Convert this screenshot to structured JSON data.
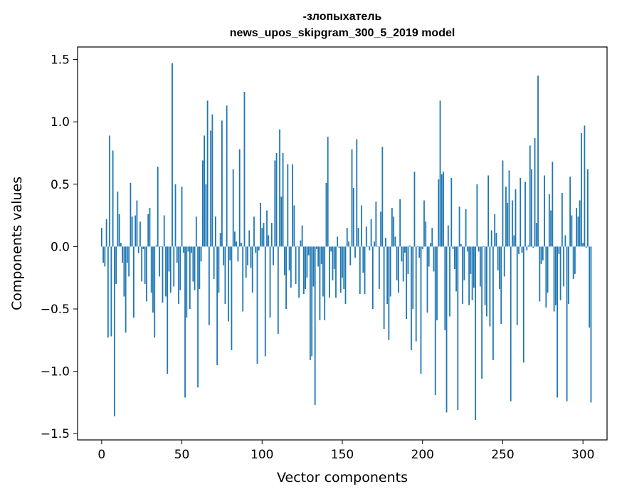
{
  "chart_data": {
    "type": "bar",
    "title_line1": "-злопыхатель",
    "title_line2": "news_upos_skipgram_300_5_2019 model",
    "xlabel": "Vector components",
    "ylabel": "Components values",
    "xlim": [
      -15,
      315
    ],
    "ylim": [
      -1.55,
      1.6
    ],
    "xticks": [
      0,
      50,
      100,
      150,
      200,
      250,
      300
    ],
    "xtick_labels": [
      "0",
      "50",
      "100",
      "150",
      "200",
      "250",
      "300"
    ],
    "yticks": [
      -1.5,
      -1.0,
      -0.5,
      0.0,
      0.5,
      1.0,
      1.5
    ],
    "ytick_labels": [
      "−1.5",
      "−1.0",
      "−0.5",
      "0.0",
      "0.5",
      "1.0",
      "1.5"
    ],
    "grid": false,
    "bar_color": "#1f77b4",
    "x_start": 0,
    "values": [
      0.15,
      -0.13,
      -0.16,
      0.22,
      -0.73,
      0.89,
      -0.72,
      0.77,
      -1.36,
      -0.3,
      0.44,
      0.26,
      0.03,
      -0.13,
      -0.4,
      -0.69,
      -0.13,
      -0.24,
      0.51,
      0.24,
      -0.57,
      0.25,
      0.37,
      -0.05,
      0.2,
      -0.28,
      -0.02,
      -0.3,
      -0.44,
      0.26,
      0.31,
      -0.37,
      -0.53,
      -0.73,
      0.01,
      0.64,
      -0.24,
      0.0,
      -0.45,
      0.25,
      -0.4,
      -1.02,
      -0.2,
      -0.37,
      1.47,
      -0.32,
      0.5,
      -0.13,
      -0.46,
      -0.35,
      0.48,
      -0.05,
      -1.21,
      -0.57,
      -0.04,
      -0.5,
      -0.05,
      -0.28,
      -0.35,
      0.24,
      -1.13,
      -0.34,
      -0.12,
      0.69,
      0.89,
      0.5,
      1.17,
      -0.63,
      0.93,
      1.06,
      -0.26,
      0.24,
      -0.95,
      -0.37,
      0.11,
      1.01,
      -0.15,
      -0.46,
      1.13,
      -0.6,
      -0.11,
      -0.83,
      0.62,
      0.12,
      0.04,
      -0.12,
      0.78,
      0.03,
      -0.52,
      1.24,
      -0.25,
      -0.15,
      0.13,
      -0.17,
      -0.37,
      0.24,
      -0.05,
      -0.94,
      -0.03,
      0.35,
      0.15,
      0.19,
      -0.88,
      0.29,
      0.09,
      -0.57,
      0.19,
      -0.15,
      0.69,
      0.75,
      -0.7,
      0.94,
      0.4,
      0.75,
      -0.23,
      -0.5,
      0.66,
      -0.19,
      -0.33,
      0.66,
      0.33,
      -0.3,
      0.0,
      -0.41,
      0.05,
      0.17,
      -0.38,
      -0.34,
      -0.25,
      -0.07,
      -0.91,
      -0.88,
      -0.32,
      -1.27,
      -0.02,
      -0.16,
      -0.59,
      -0.14,
      -0.4,
      -0.59,
      0.51,
      0.88,
      -0.41,
      -0.04,
      -0.27,
      -0.18,
      -0.41,
      0.08,
      -0.01,
      -0.37,
      -0.25,
      -0.34,
      -0.46,
      0.15,
      0.04,
      -0.15,
      0.78,
      0.47,
      -0.09,
      0.86,
      0.15,
      -0.38,
      0.33,
      -0.21,
      -0.38,
      0.16,
      0.0,
      -0.03,
      0.22,
      -0.5,
      0.04,
      0.36,
      0.0,
      -0.34,
      0.28,
      0.8,
      -0.66,
      0.07,
      -0.46,
      -0.75,
      -0.4,
      0.31,
      0.24,
      0.08,
      -0.27,
      -0.37,
      0.38,
      -0.12,
      -0.28,
      -0.05,
      -0.58,
      -0.22,
      0.01,
      -0.83,
      -0.5,
      0.6,
      -0.76,
      0.0,
      -0.09,
      -1.02,
      -0.02,
      0.37,
      0.2,
      -0.53,
      -0.16,
      0.03,
      0.15,
      -0.2,
      -1.19,
      -0.59,
      0.54,
      1.17,
      0.58,
      0.6,
      -0.67,
      -1.33,
      0.17,
      -0.56,
      0.55,
      -0.02,
      -0.18,
      -0.36,
      -1.31,
      0.32,
      0.02,
      -0.46,
      -0.27,
      0.3,
      -0.04,
      -0.47,
      -0.22,
      -0.43,
      -0.33,
      -1.39,
      0.5,
      -0.04,
      -0.32,
      -1.06,
      0.0,
      -0.47,
      -0.56,
      0.57,
      -0.64,
      0.13,
      -0.91,
      0.26,
      0.11,
      -0.19,
      -0.34,
      -0.62,
      0.69,
      -0.24,
      0.48,
      0.35,
      0.61,
      -1.24,
      0.37,
      0.09,
      0.46,
      -0.63,
      -0.06,
      0.55,
      -0.05,
      -0.93,
      0.52,
      -0.03,
      0.01,
      0.81,
      0.62,
      -0.01,
      0.87,
      0.19,
      1.37,
      -0.44,
      -0.14,
      -0.11,
      0.57,
      -0.49,
      -0.37,
      0.42,
      0.29,
      0.68,
      -0.52,
      -0.47,
      -1.21,
      -0.06,
      -0.43,
      0.43,
      -0.32,
      0.09,
      -1.24,
      -0.46,
      0.56,
      0.25,
      -0.26,
      -0.22,
      0.31,
      0.24,
      0.37,
      0.91,
      0.03,
      0.97,
      -0.01,
      0.62,
      -0.65,
      -1.25
    ]
  }
}
